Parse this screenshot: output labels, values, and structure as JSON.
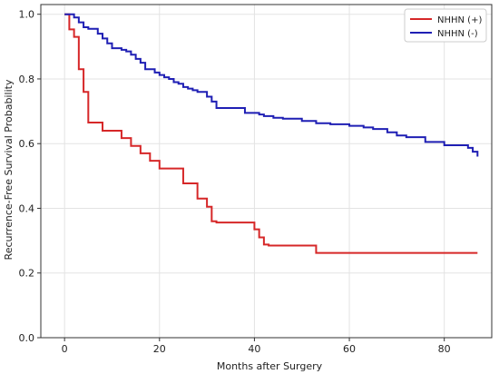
{
  "chart_data": {
    "type": "line",
    "step": true,
    "xlabel": "Months after Surgery",
    "ylabel": "Recurrence-Free Survival Probability",
    "xlim": [
      -5,
      90
    ],
    "ylim": [
      0,
      1.03
    ],
    "xticks": [
      0,
      20,
      40,
      60,
      80
    ],
    "yticks": [
      0.0,
      0.2,
      0.4,
      0.6,
      0.8,
      1.0
    ],
    "x_tick_labels": [
      "0",
      "20",
      "40",
      "60",
      "80"
    ],
    "y_tick_labels": [
      "0.0",
      "0.2",
      "0.4",
      "0.6",
      "0.8",
      "1.0"
    ],
    "grid": true,
    "legend_position": "top-right",
    "series": [
      {
        "name": "NHHN (+)",
        "color": "#d62728",
        "x": [
          0,
          1,
          2,
          3,
          4,
          5,
          8,
          12,
          14,
          16,
          18,
          20,
          25,
          28,
          30,
          31,
          32,
          40,
          41,
          42,
          43,
          53,
          87
        ],
        "y": [
          1.0,
          0.953,
          0.93,
          0.83,
          0.76,
          0.665,
          0.64,
          0.617,
          0.593,
          0.57,
          0.547,
          0.523,
          0.477,
          0.43,
          0.405,
          0.36,
          0.356,
          0.335,
          0.31,
          0.288,
          0.285,
          0.262,
          0.262
        ]
      },
      {
        "name": "NHHN (-)",
        "color": "#1f1fb4",
        "x": [
          0,
          2,
          3,
          4,
          5,
          7,
          8,
          9,
          10,
          12,
          13,
          14,
          15,
          16,
          17,
          19,
          20,
          21,
          22,
          23,
          24,
          25,
          26,
          27,
          28,
          30,
          31,
          32,
          35,
          38,
          41,
          42,
          44,
          46,
          50,
          53,
          56,
          60,
          63,
          65,
          68,
          70,
          72,
          76,
          80,
          85,
          86,
          87
        ],
        "y": [
          1.0,
          0.99,
          0.975,
          0.96,
          0.955,
          0.94,
          0.925,
          0.91,
          0.895,
          0.89,
          0.885,
          0.875,
          0.862,
          0.85,
          0.83,
          0.82,
          0.812,
          0.805,
          0.8,
          0.79,
          0.785,
          0.775,
          0.77,
          0.765,
          0.76,
          0.745,
          0.73,
          0.71,
          0.71,
          0.695,
          0.69,
          0.685,
          0.68,
          0.677,
          0.67,
          0.663,
          0.66,
          0.655,
          0.65,
          0.645,
          0.635,
          0.625,
          0.62,
          0.605,
          0.595,
          0.587,
          0.575,
          0.56
        ]
      }
    ]
  }
}
